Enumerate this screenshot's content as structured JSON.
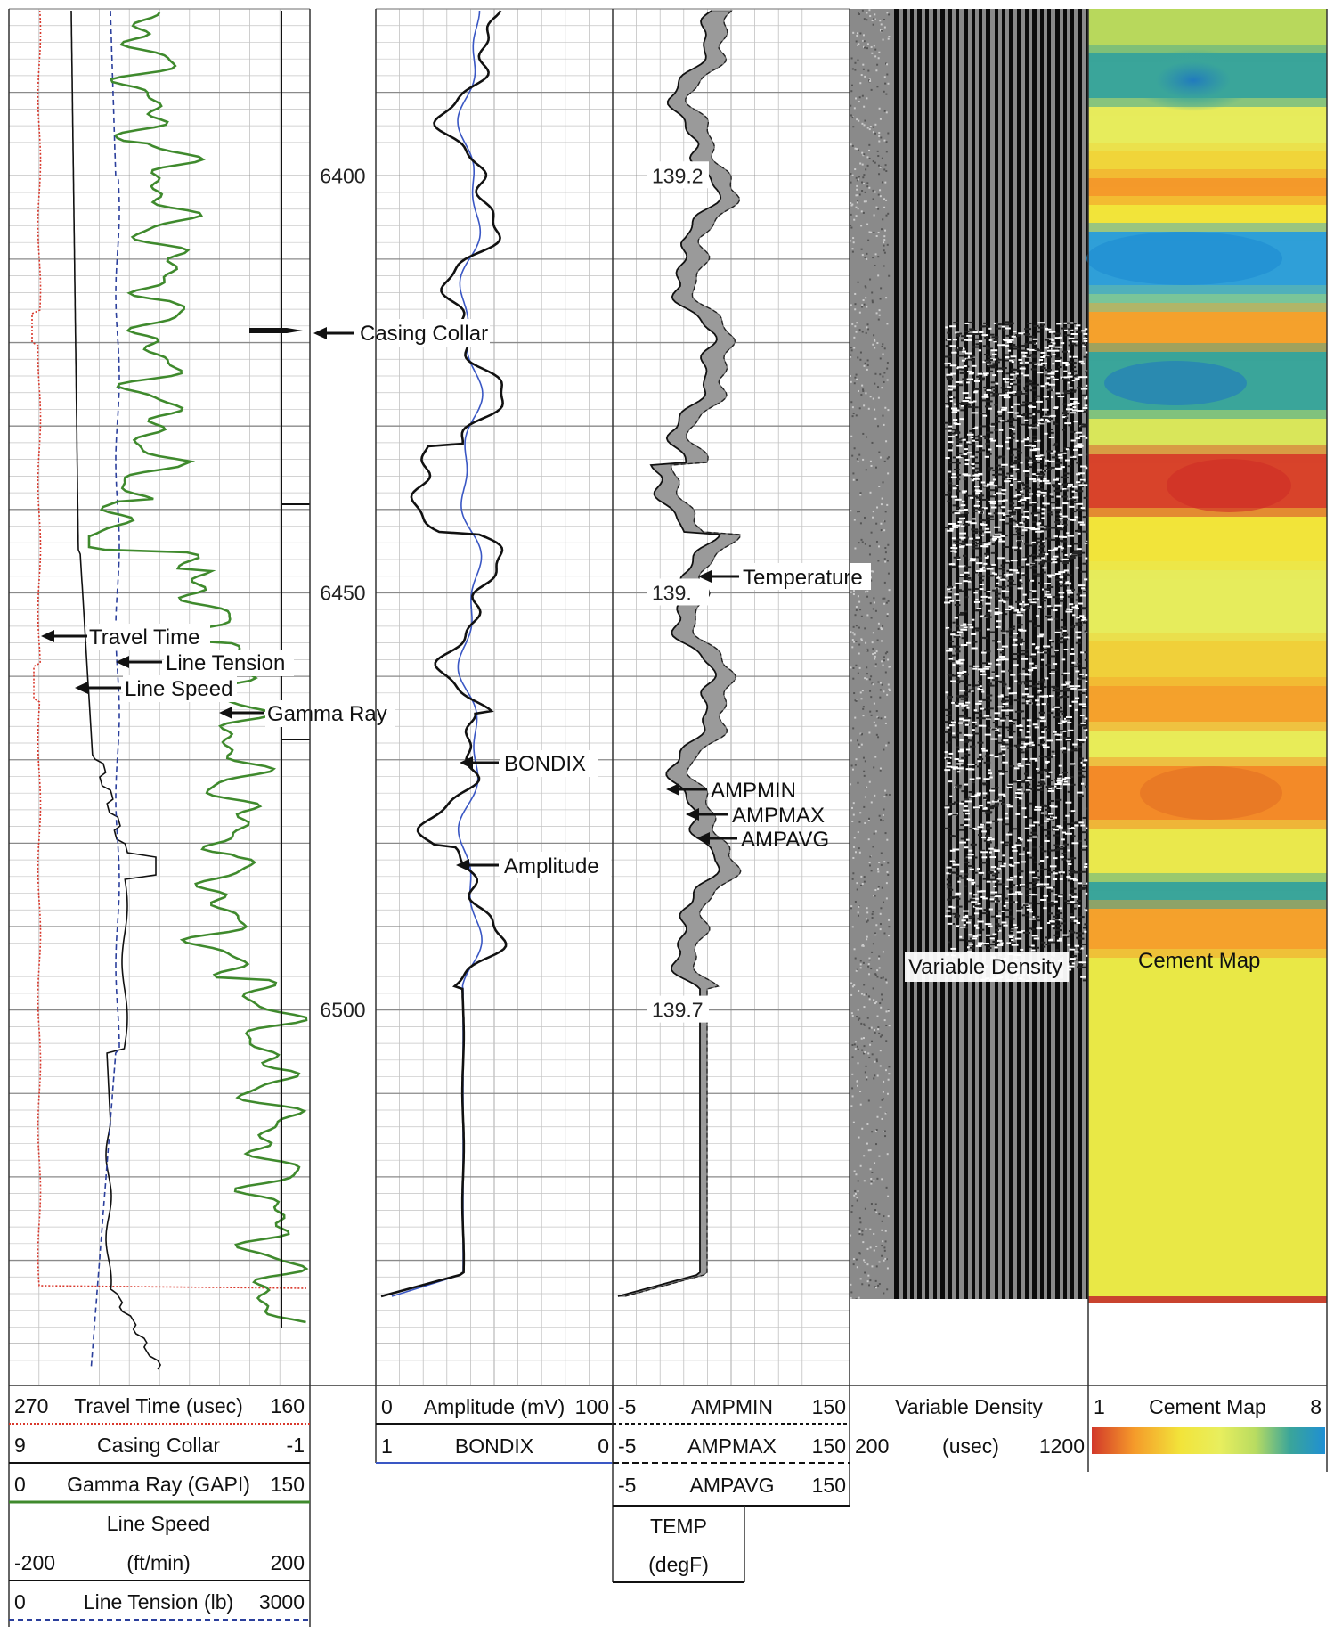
{
  "chart_data": {
    "type": "line",
    "title": "",
    "depth_ticks": [
      6400,
      6450,
      6500
    ],
    "depth_range": [
      6380,
      6545
    ],
    "tracks": [
      {
        "name": "track-1",
        "curves": [
          {
            "name": "Travel Time",
            "unit": "usec",
            "scale": [
              270,
              160
            ],
            "color": "#d9382c",
            "style": "dotted"
          },
          {
            "name": "Casing Collar",
            "unit": "",
            "scale": [
              9,
              -1
            ],
            "color": "#111111",
            "style": "solid"
          },
          {
            "name": "Gamma Ray",
            "unit": "GAPI",
            "scale": [
              0,
              150
            ],
            "color": "#3f8a2d",
            "style": "solid"
          },
          {
            "name": "Line Speed",
            "unit": "ft/min",
            "scale": [
              -200,
              200
            ],
            "color": "#111111",
            "style": "solid"
          },
          {
            "name": "Line Tension",
            "unit": "lb",
            "scale": [
              0,
              3000
            ],
            "color": "#2b3f9c",
            "style": "dashed"
          }
        ]
      },
      {
        "name": "track-2",
        "curves": [
          {
            "name": "Amplitude",
            "unit": "mV",
            "scale": [
              0,
              100
            ],
            "color": "#111111"
          },
          {
            "name": "BONDIX",
            "unit": "",
            "scale": [
              1,
              0
            ],
            "color": "#3a57c4"
          }
        ]
      },
      {
        "name": "track-3",
        "curves": [
          {
            "name": "AMPMIN",
            "scale": [
              -5,
              150
            ]
          },
          {
            "name": "AMPMAX",
            "scale": [
              -5,
              150
            ]
          },
          {
            "name": "AMPAVG",
            "scale": [
              -5,
              150
            ]
          },
          {
            "name": "TEMP",
            "unit": "degF"
          }
        ],
        "temperature_labels": [
          {
            "depth": 6400,
            "text": "139.2"
          },
          {
            "depth": 6450,
            "text": "139."
          },
          {
            "depth": 6500,
            "text": "139.7"
          }
        ]
      },
      {
        "name": "Variable Density",
        "unit": "usec",
        "scale": [
          200,
          1200
        ]
      },
      {
        "name": "Cement Map",
        "scale": [
          1,
          8
        ],
        "colors": [
          "#d2382a",
          "#f59a2a",
          "#f2e43a",
          "#e8ee5e",
          "#b9dc61",
          "#3aa59a",
          "#1f8fd3"
        ]
      }
    ],
    "annotations": [
      "Casing Collar",
      "Travel Time",
      "Line Tension",
      "Line Speed",
      "Gamma Ray",
      "BONDIX",
      "Amplitude",
      "Temperature",
      "AMPMIN",
      "AMPMAX",
      "AMPAVG",
      "Variable Density",
      "Cement Map"
    ]
  },
  "header": {
    "tt": {
      "left": "270",
      "name": "Travel Time (usec)",
      "right": "160"
    },
    "cc": {
      "left": "9",
      "name": "Casing Collar",
      "right": "-1"
    },
    "gr": {
      "left": "0",
      "name": "Gamma Ray (GAPI)",
      "right": "150"
    },
    "ls": {
      "name": "Line Speed",
      "left": "-200",
      "unit": "(ft/min)",
      "right": "200"
    },
    "lt": {
      "left": "0",
      "name": "Line Tension (lb)",
      "right": "3000"
    },
    "amp": {
      "left": "0",
      "name": "Amplitude (mV)",
      "right": "100"
    },
    "bondix": {
      "left": "1",
      "name": "BONDIX",
      "right": "0"
    },
    "ampmin": {
      "left": "-5",
      "name": "AMPMIN",
      "right": "150"
    },
    "ampmax": {
      "left": "-5",
      "name": "AMPMAX",
      "right": "150"
    },
    "ampavg": {
      "left": "-5",
      "name": "AMPAVG",
      "right": "150"
    },
    "temp": {
      "name": "TEMP",
      "unit": "(degF)"
    },
    "vd": {
      "name": "Variable Density",
      "left": "200",
      "unit": "(usec)",
      "right": "1200"
    },
    "cm": {
      "left": "1",
      "name": "Cement Map",
      "right": "8"
    }
  },
  "labels": {
    "casing_collar": "Casing Collar",
    "travel_time": "Travel Time",
    "line_tension": "Line Tension",
    "line_speed": "Line Speed",
    "gamma_ray": "Gamma Ray",
    "bondix": "BONDIX",
    "amplitude": "Amplitude",
    "temperature": "Temperature",
    "ampmin": "AMPMIN",
    "ampmax": "AMPMAX",
    "ampavg": "AMPAVG",
    "variable_density": "Variable Density",
    "cement_map": "Cement Map"
  }
}
